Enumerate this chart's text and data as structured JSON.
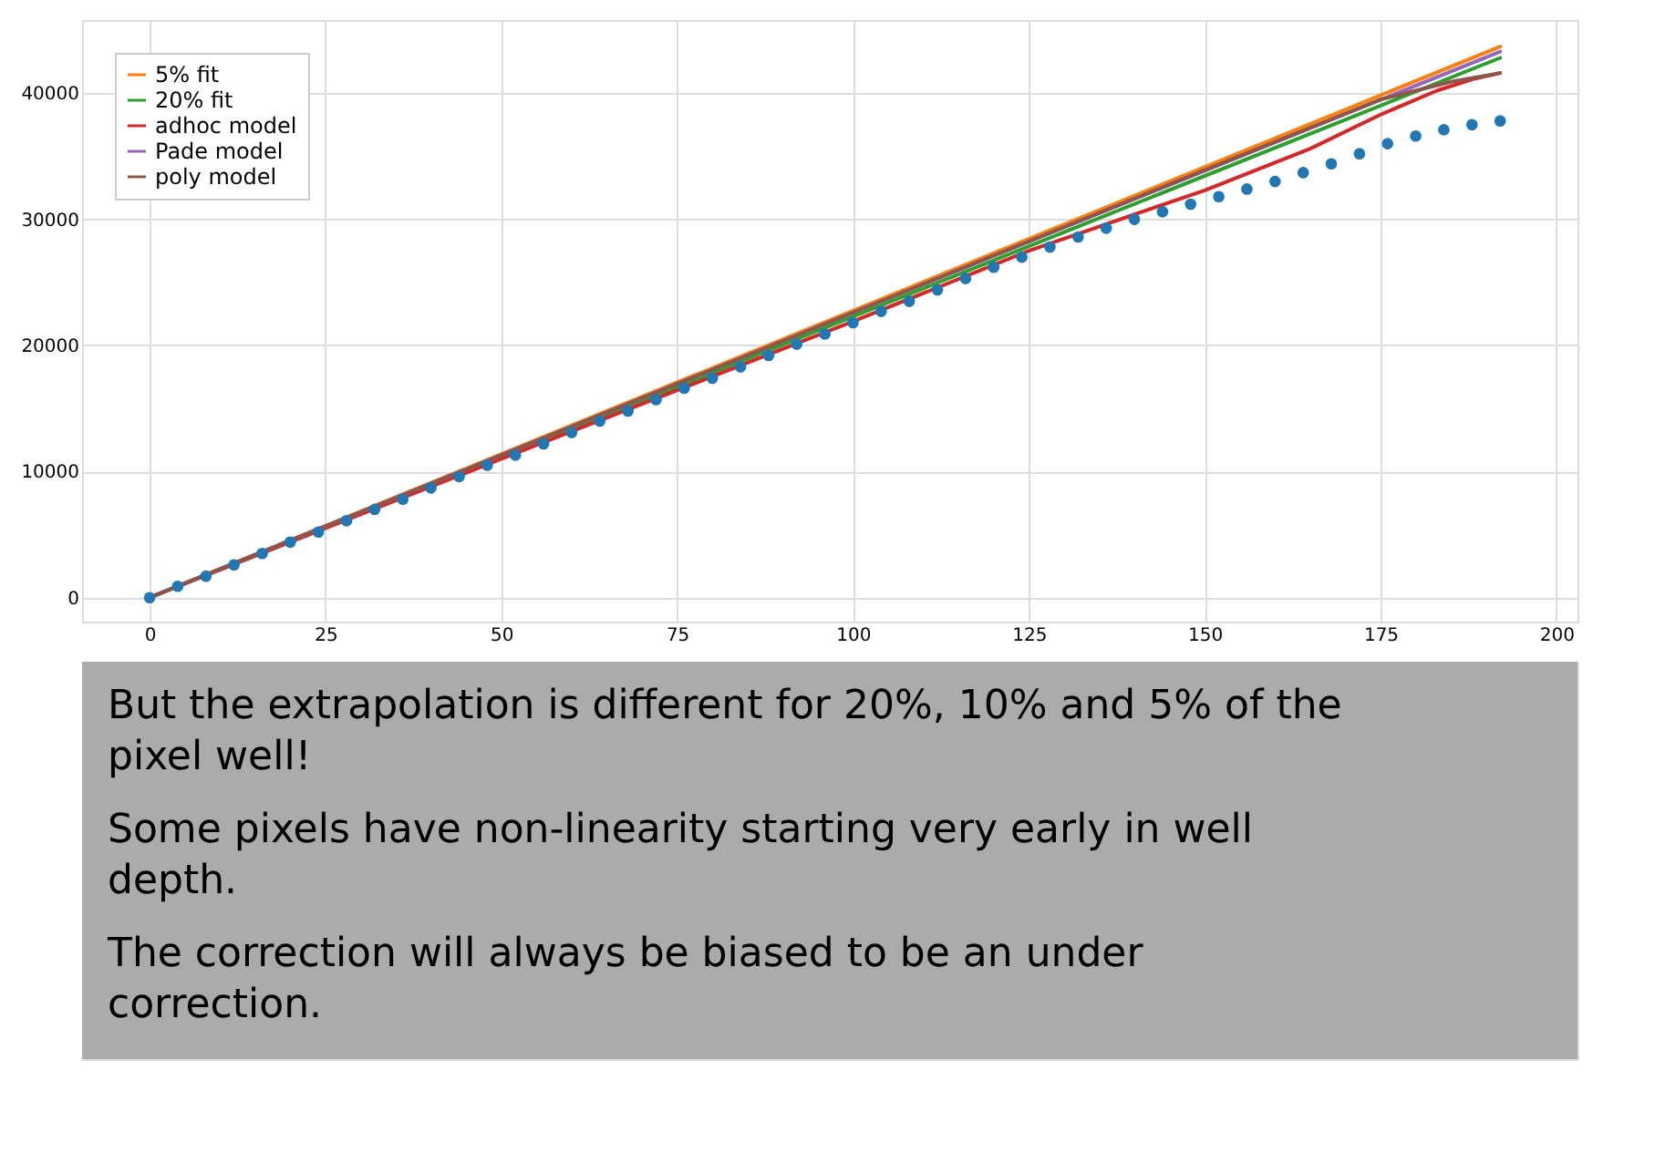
{
  "chart_data": {
    "type": "line",
    "xlim": [
      -9.6,
      203
    ],
    "ylim": [
      -1900,
      45800
    ],
    "xticks": [
      0,
      25,
      50,
      75,
      100,
      125,
      150,
      175,
      200
    ],
    "yticks": [
      0,
      10000,
      20000,
      30000,
      40000
    ],
    "grid": true,
    "legend": "top left",
    "series": [
      {
        "type": "scatter",
        "marker": "circle",
        "color": "#1f77b4",
        "x": [
          0,
          4,
          8,
          12,
          16,
          20,
          24,
          28,
          32,
          36,
          40,
          44,
          48,
          52,
          56,
          60,
          64,
          68,
          72,
          76,
          80,
          84,
          88,
          92,
          96,
          100,
          104,
          108,
          112,
          116,
          120,
          124,
          128,
          132,
          136,
          140,
          144,
          148,
          152,
          156,
          160,
          164,
          168,
          172,
          176,
          180,
          184,
          188,
          192
        ],
        "values": [
          0,
          900,
          1700,
          2600,
          3500,
          4400,
          5200,
          6100,
          7000,
          7800,
          8700,
          9600,
          10500,
          11300,
          12200,
          13100,
          14000,
          14800,
          15700,
          16600,
          17400,
          18300,
          19200,
          20100,
          20900,
          21800,
          22700,
          23500,
          24400,
          25300,
          26200,
          27000,
          27800,
          28600,
          29300,
          30000,
          30600,
          31200,
          31800,
          32400,
          33000,
          33700,
          34400,
          35200,
          36000,
          36600,
          37100,
          37500,
          37800
        ]
      },
      {
        "name": "5% fit",
        "color": "#ff7f0e",
        "x": [
          0,
          192
        ],
        "values": [
          0,
          43700
        ]
      },
      {
        "name": "20% fit",
        "color": "#2ca02c",
        "x": [
          0,
          192
        ],
        "values": [
          0,
          42800
        ]
      },
      {
        "name": "adhoc model",
        "color": "#d62728",
        "x": [
          0,
          50,
          100,
          125,
          150,
          165,
          175,
          183,
          188,
          192
        ],
        "values": [
          0,
          11000,
          21900,
          27500,
          32300,
          35600,
          38300,
          40200,
          41100,
          41600
        ]
      },
      {
        "name": "Pade model",
        "color": "#9467bd",
        "x": [
          0,
          100,
          192
        ],
        "values": [
          0,
          22600,
          43300
        ]
      },
      {
        "name": "poly model",
        "color": "#8c564b",
        "x": [
          0,
          50,
          100,
          150,
          175,
          185,
          192
        ],
        "values": [
          0,
          11300,
          22600,
          33900,
          39500,
          40900,
          41600
        ]
      }
    ],
    "annotations": [
      "But the extrapolation is different for 20%, 10% and 5% of the pixel well!",
      "Some pixels have non-linearity starting very early in well depth.",
      "The correction will always be biased to be an under correction."
    ]
  }
}
